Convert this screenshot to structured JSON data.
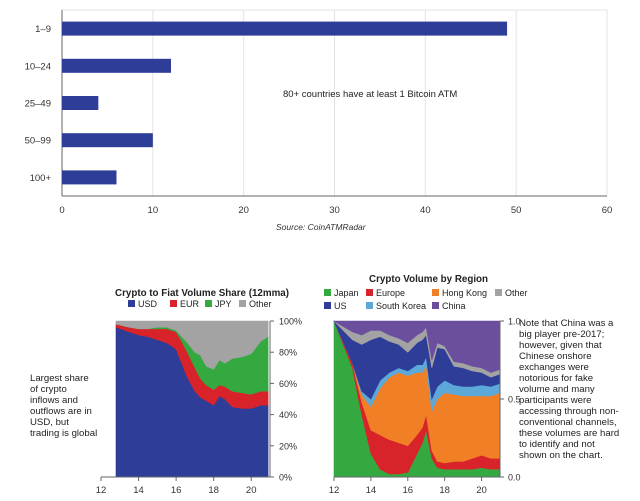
{
  "colors": {
    "bar": "#2e3d98",
    "usd": "#2e3d98",
    "eur": "#d9232a",
    "jpy": "#33a940",
    "other": "#a3a3a3",
    "japan": "#33a940",
    "europe": "#d9232a",
    "hongkong": "#f07f26",
    "other_region": "#a3a3a3",
    "us": "#2e3d98",
    "southkorea": "#5ca8d8",
    "china": "#6b4f9e",
    "grid": "#e3e3e3",
    "axis": "#666666"
  },
  "chart_data": [
    {
      "type": "bar",
      "orientation": "horizontal",
      "categories": [
        "1–9",
        "10–24",
        "25–49",
        "50–99",
        "100+"
      ],
      "values": [
        49,
        12,
        4,
        10,
        6
      ],
      "xlim": [
        0,
        60
      ],
      "xticks": [
        "0",
        "10",
        "20",
        "30",
        "40",
        "50",
        "60"
      ],
      "grid": true,
      "annotation": "80+ countries have at least 1 Bitcoin ATM",
      "source": "Source: CoinATMRadar"
    },
    {
      "type": "area",
      "stacked": true,
      "title": "Crypto to Fiat Volume Share (12mma)",
      "legend": [
        "USD",
        "EUR",
        "JPY",
        "Other"
      ],
      "x": [
        12.8,
        13.5,
        14.0,
        14.5,
        15.0,
        15.5,
        16.0,
        16.3,
        16.6,
        17.0,
        17.3,
        17.6,
        18.0,
        18.3,
        18.6,
        19.0,
        19.5,
        20.0,
        20.5,
        20.9
      ],
      "series": [
        {
          "name": "USD",
          "values": [
            96,
            93,
            91,
            90,
            88,
            86,
            82,
            73,
            64,
            55,
            51,
            49,
            46,
            52,
            50,
            45,
            44,
            44,
            46,
            46
          ]
        },
        {
          "name": "EUR",
          "values": [
            2,
            3,
            4,
            5,
            7,
            9,
            11,
            14,
            16,
            15,
            12,
            10,
            10,
            7,
            8,
            10,
            10,
            9,
            9,
            9
          ]
        },
        {
          "name": "JPY",
          "values": [
            0,
            0,
            0,
            0,
            1,
            1,
            1,
            3,
            6,
            10,
            15,
            12,
            13,
            16,
            15,
            21,
            23,
            26,
            32,
            35
          ]
        },
        {
          "name": "Other",
          "values": [
            2,
            4,
            5,
            5,
            4,
            4,
            6,
            10,
            14,
            20,
            22,
            29,
            31,
            25,
            27,
            24,
            23,
            21,
            13,
            10
          ]
        }
      ],
      "xlim": [
        12,
        21
      ],
      "xticks": [
        "12",
        "14",
        "16",
        "18",
        "20"
      ],
      "ylim": [
        0,
        100
      ],
      "yticks": [
        "0%",
        "20%",
        "40%",
        "60%",
        "80%",
        "100%"
      ],
      "side_note": "Largest share of crypto inflows and outflows are in USD, but trading is global"
    },
    {
      "type": "area",
      "stacked": true,
      "title": "Crypto Volume by Region",
      "legend": [
        "Japan",
        "Europe",
        "Hong Kong",
        "Other",
        "US",
        "South Korea",
        "China"
      ],
      "x": [
        12.0,
        13.0,
        13.5,
        14.0,
        14.5,
        15.0,
        15.5,
        16.0,
        16.5,
        16.8,
        17.0,
        17.3,
        17.6,
        18.0,
        18.5,
        19.0,
        19.5,
        20.0,
        20.5,
        21.0
      ],
      "series": [
        {
          "name": "Japan",
          "values": [
            1.0,
            0.7,
            0.4,
            0.15,
            0.05,
            0.02,
            0.02,
            0.03,
            0.15,
            0.22,
            0.3,
            0.12,
            0.06,
            0.05,
            0.05,
            0.05,
            0.05,
            0.06,
            0.05,
            0.05
          ]
        },
        {
          "name": "Europe",
          "values": [
            0.0,
            0.03,
            0.08,
            0.15,
            0.22,
            0.22,
            0.2,
            0.17,
            0.12,
            0.1,
            0.1,
            0.05,
            0.04,
            0.04,
            0.05,
            0.05,
            0.07,
            0.08,
            0.07,
            0.07
          ]
        },
        {
          "name": "Hong Kong",
          "values": [
            0.0,
            0.0,
            0.05,
            0.15,
            0.3,
            0.4,
            0.45,
            0.45,
            0.4,
            0.35,
            0.32,
            0.25,
            0.4,
            0.45,
            0.43,
            0.42,
            0.4,
            0.38,
            0.4,
            0.42
          ]
        },
        {
          "name": "South Korea",
          "values": [
            0.0,
            0.0,
            0.02,
            0.05,
            0.05,
            0.03,
            0.03,
            0.03,
            0.05,
            0.05,
            0.05,
            0.08,
            0.08,
            0.08,
            0.06,
            0.06,
            0.06,
            0.07,
            0.06,
            0.06
          ]
        },
        {
          "name": "US",
          "values": [
            0.0,
            0.15,
            0.3,
            0.38,
            0.28,
            0.2,
            0.15,
            0.12,
            0.14,
            0.16,
            0.14,
            0.2,
            0.25,
            0.2,
            0.12,
            0.12,
            0.1,
            0.08,
            0.06,
            0.06
          ]
        },
        {
          "name": "Other",
          "values": [
            0.0,
            0.05,
            0.06,
            0.06,
            0.04,
            0.04,
            0.04,
            0.06,
            0.05,
            0.05,
            0.05,
            0.05,
            0.03,
            0.02,
            0.03,
            0.03,
            0.03,
            0.03,
            0.03,
            0.03
          ]
        },
        {
          "name": "China",
          "values": [
            0.0,
            0.07,
            0.09,
            0.06,
            0.06,
            0.09,
            0.11,
            0.14,
            0.09,
            0.07,
            0.04,
            0.25,
            0.14,
            0.16,
            0.26,
            0.27,
            0.29,
            0.3,
            0.33,
            0.31
          ]
        }
      ],
      "xlim": [
        12,
        21
      ],
      "xticks": [
        "12",
        "14",
        "16",
        "18",
        "20"
      ],
      "ylim": [
        0,
        1.0
      ],
      "yticks": [
        "0.0",
        "0.5",
        "1.0"
      ],
      "side_note": "Note that China was a big player pre-2017; however, given that Chinese onshore exchanges were notorious for fake volume and many participants were accessing through non-conventional channels, these volumes are hard to identify and not shown on the chart."
    }
  ]
}
